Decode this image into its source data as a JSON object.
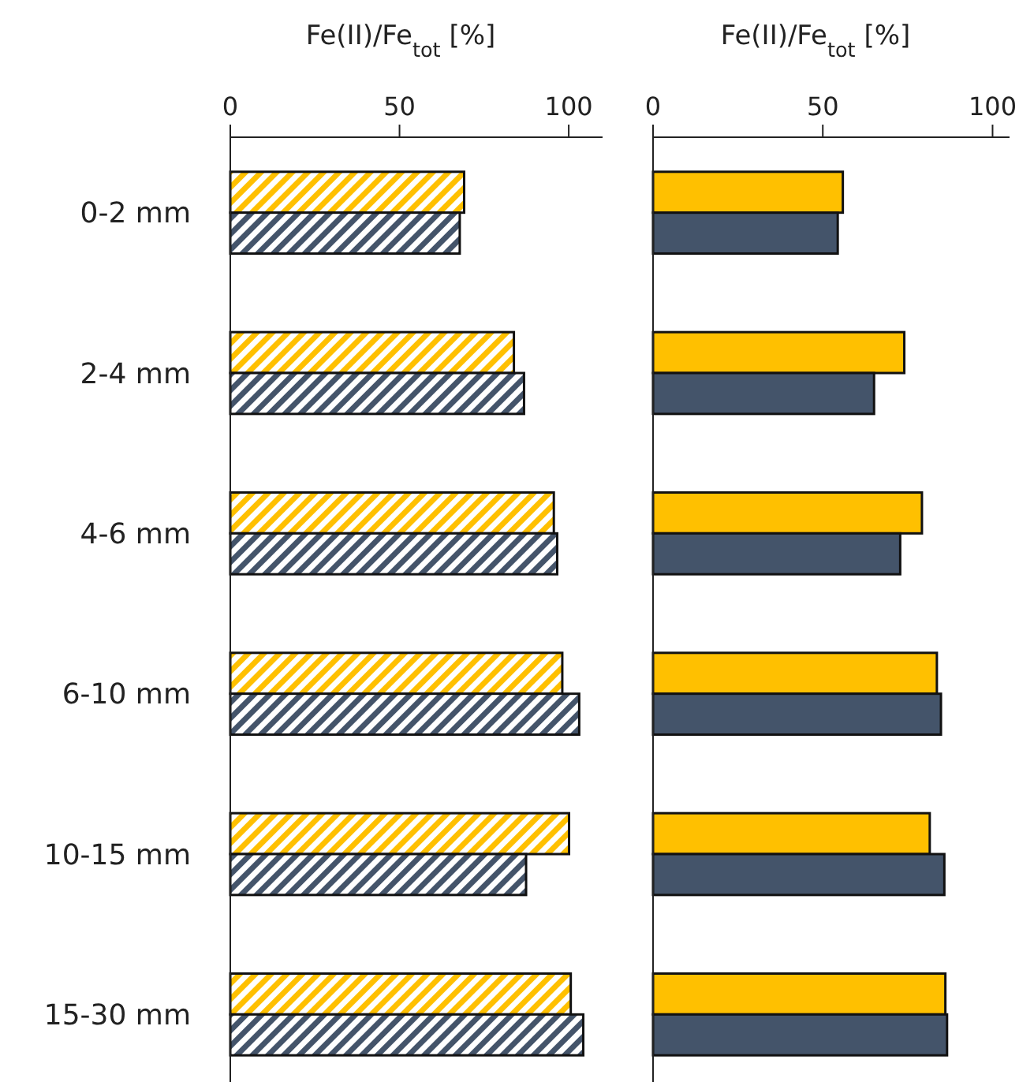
{
  "chart_data": [
    {
      "type": "bar",
      "orientation": "horizontal",
      "xlabel": "Fe(II)/Fe$_{tot}$ [%]",
      "categories": [
        "0-2 mm",
        "2-4 mm",
        "4-6 mm",
        "6-10 mm",
        "10-15 mm",
        "15-30 mm"
      ],
      "xlim": [
        0,
        110
      ],
      "xticks": [
        0,
        50,
        100
      ],
      "series": [
        {
          "color": "#ffc000",
          "values": [
            69.1,
            83.8,
            95.6,
            98.1,
            100.1,
            100.6
          ]
        },
        {
          "color": "#44546a",
          "values": [
            67.8,
            86.8,
            96.6,
            103.1,
            87.4,
            104.3
          ]
        }
      ]
    },
    {
      "type": "bar",
      "orientation": "horizontal",
      "xlabel": "Fe(II)/Fe$_{tot}$ [%]",
      "categories": [
        null,
        null,
        null,
        null,
        null,
        null
      ],
      "xlim": [
        0,
        105
      ],
      "xticks": [
        0,
        50,
        100
      ],
      "tick_labels": "x",
      "series": [
        {
          "color": "#ffc000",
          "values": [
            55.9,
            74.0,
            79.2,
            83.6,
            81.5,
            86.1
          ]
        },
        {
          "color": "#44546a",
          "values": [
            54.4,
            65.1,
            72.8,
            84.8,
            85.8,
            86.6
          ]
        }
      ]
    }
  ]
}
